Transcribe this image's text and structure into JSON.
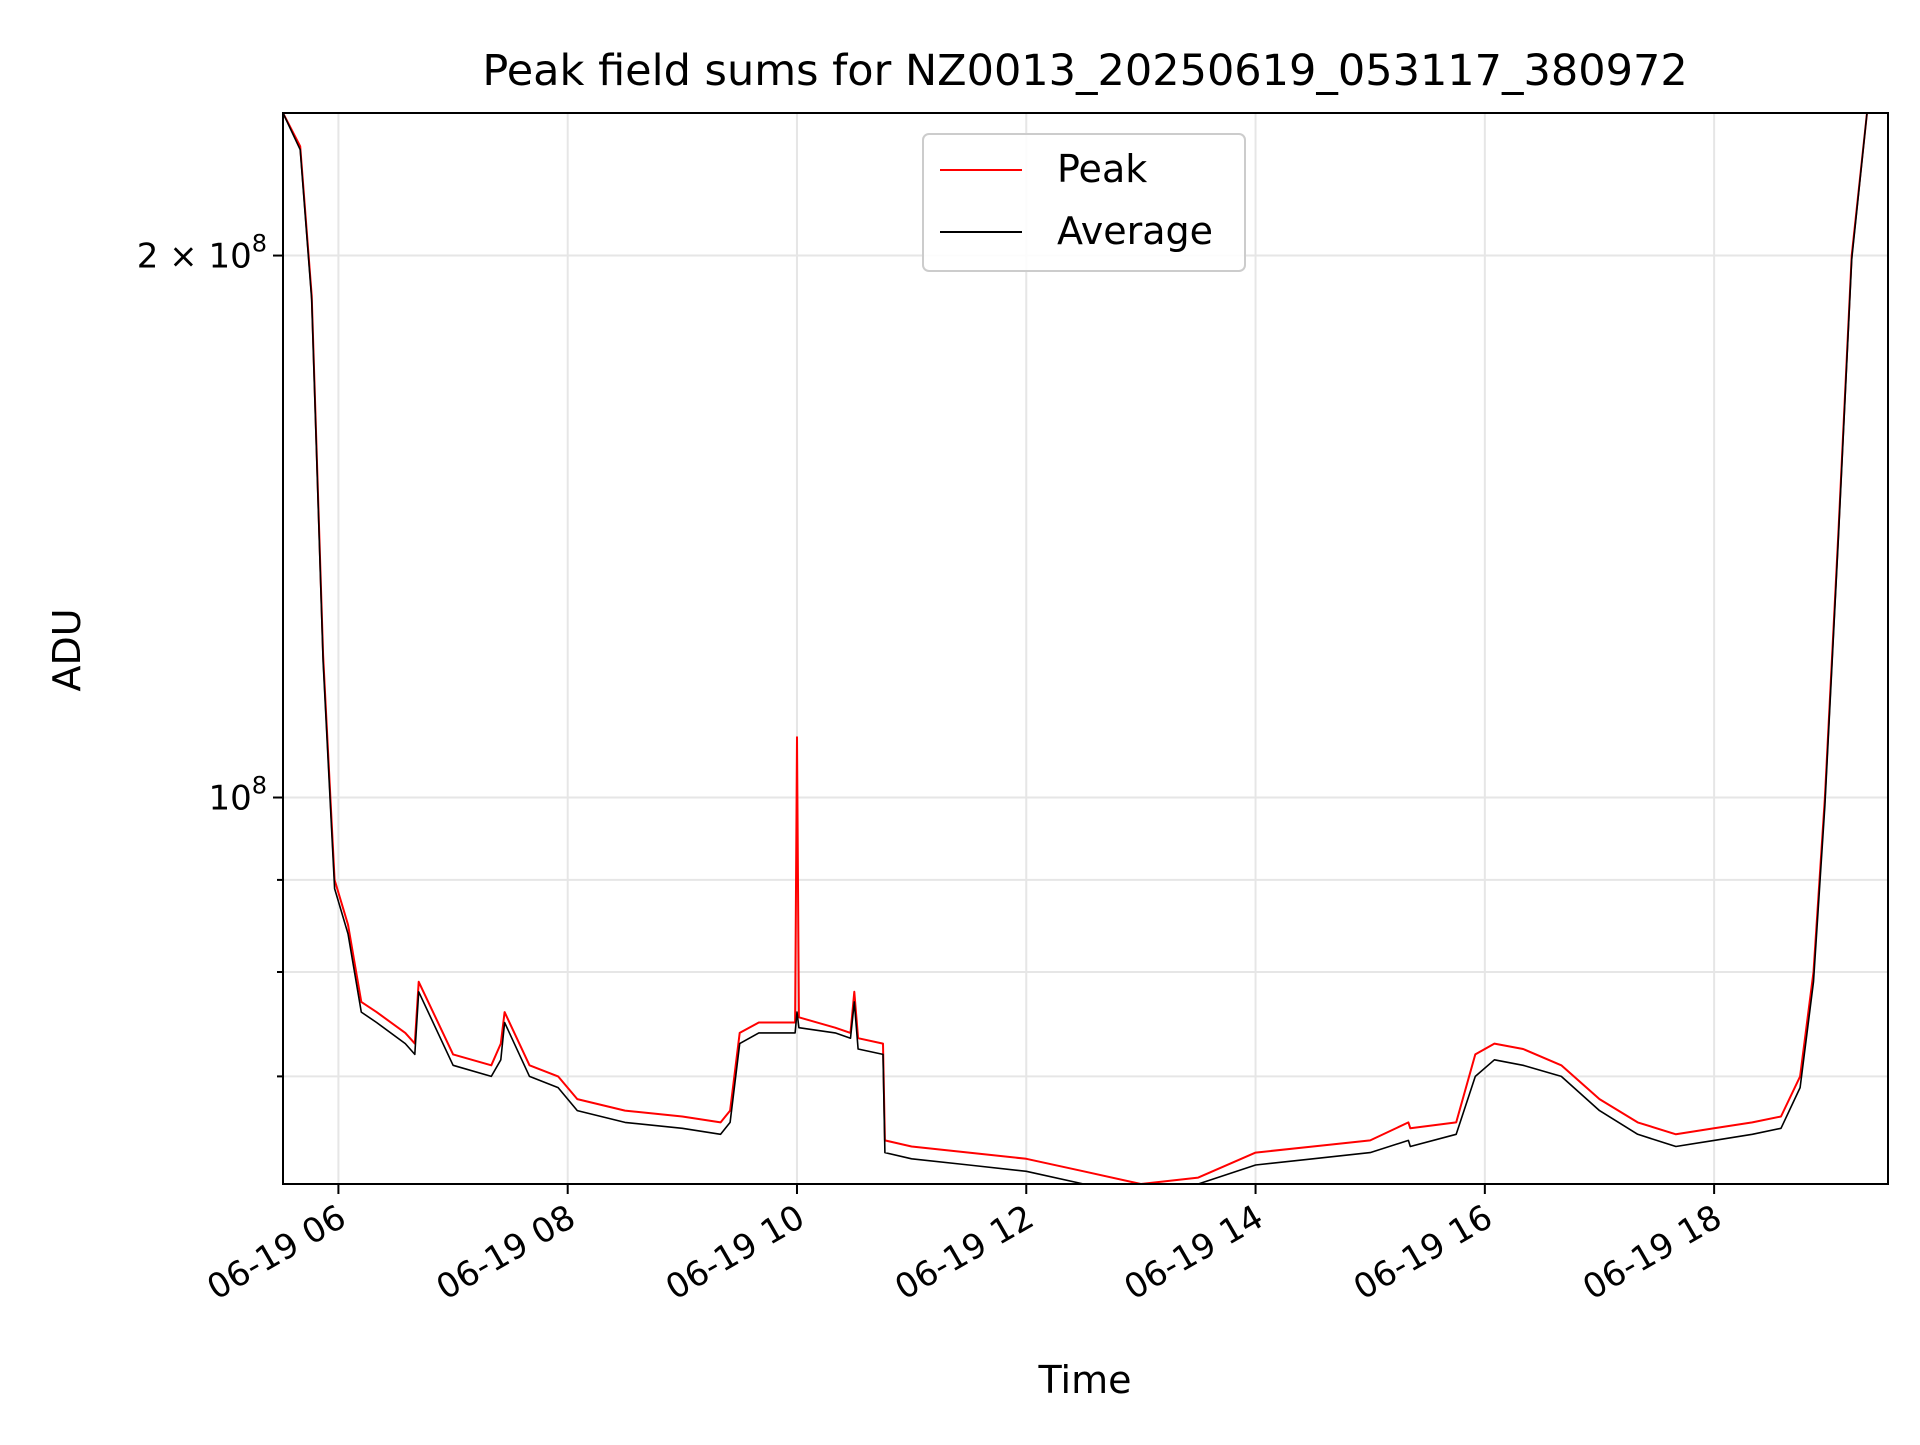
{
  "chart_data": {
    "type": "line",
    "title": "Peak field sums for NZ0013_20250619_053117_380972",
    "xlabel": "Time",
    "ylabel": "ADU",
    "yscale": "log",
    "grid": true,
    "legend_position": "top-center",
    "xlim": [
      "2025-06-19 05:31",
      "2025-06-19 19:31"
    ],
    "ylim": [
      61000000,
      240000000
    ],
    "x_ticks": [
      "06-19 06",
      "06-19 08",
      "06-19 10",
      "06-19 12",
      "06-19 14",
      "06-19 16",
      "06-19 18"
    ],
    "y_tick_labels": [
      {
        "value": 100000000,
        "base": "10",
        "exponent": "8"
      },
      {
        "value": 200000000,
        "base": "2 × 10",
        "exponent": "8"
      }
    ],
    "y_minor_ticks": [
      70000000,
      80000000,
      90000000
    ],
    "series": [
      {
        "name": "Peak",
        "color": "#ff0000",
        "x": [
          "2025-06-19 05:31",
          "2025-06-19 05:40",
          "2025-06-19 05:46",
          "2025-06-19 05:52",
          "2025-06-19 05:58",
          "2025-06-19 06:05",
          "2025-06-19 06:12",
          "2025-06-19 06:20",
          "2025-06-19 06:35",
          "2025-06-19 06:40",
          "2025-06-19 06:42",
          "2025-06-19 07:00",
          "2025-06-19 07:20",
          "2025-06-19 07:25",
          "2025-06-19 07:27",
          "2025-06-19 07:40",
          "2025-06-19 07:55",
          "2025-06-19 08:05",
          "2025-06-19 08:30",
          "2025-06-19 09:00",
          "2025-06-19 09:20",
          "2025-06-19 09:25",
          "2025-06-19 09:30",
          "2025-06-19 09:40",
          "2025-06-19 09:59",
          "2025-06-19 10:00",
          "2025-06-19 10:01",
          "2025-06-19 10:20",
          "2025-06-19 10:28",
          "2025-06-19 10:30",
          "2025-06-19 10:32",
          "2025-06-19 10:45",
          "2025-06-19 10:46",
          "2025-06-19 11:00",
          "2025-06-19 11:30",
          "2025-06-19 12:00",
          "2025-06-19 12:30",
          "2025-06-19 13:00",
          "2025-06-19 13:30",
          "2025-06-19 14:00",
          "2025-06-19 14:30",
          "2025-06-19 15:00",
          "2025-06-19 15:20",
          "2025-06-19 15:21",
          "2025-06-19 15:45",
          "2025-06-19 15:55",
          "2025-06-19 16:05",
          "2025-06-19 16:20",
          "2025-06-19 16:40",
          "2025-06-19 17:00",
          "2025-06-19 17:20",
          "2025-06-19 17:40",
          "2025-06-19 18:00",
          "2025-06-19 18:20",
          "2025-06-19 18:35",
          "2025-06-19 18:45",
          "2025-06-19 18:52",
          "2025-06-19 18:58",
          "2025-06-19 19:05",
          "2025-06-19 19:12",
          "2025-06-19 19:20"
        ],
        "values": [
          240000000,
          230000000,
          190000000,
          120000000,
          90000000,
          85000000,
          77000000,
          76000000,
          74000000,
          73000000,
          79000000,
          72000000,
          71000000,
          73000000,
          76000000,
          71000000,
          70000000,
          68000000,
          67000000,
          66500000,
          66000000,
          67000000,
          74000000,
          75000000,
          75000000,
          108000000,
          75500000,
          74500000,
          74000000,
          78000000,
          73500000,
          73000000,
          64500000,
          64000000,
          63500000,
          63000000,
          62000000,
          61000000,
          61500000,
          63500000,
          64000000,
          64500000,
          66000000,
          65500000,
          66000000,
          72000000,
          73000000,
          72500000,
          71000000,
          68000000,
          66000000,
          65000000,
          65500000,
          66000000,
          66500000,
          70000000,
          80000000,
          100000000,
          140000000,
          200000000,
          240000000
        ]
      },
      {
        "name": "Average",
        "color": "#000000",
        "x": [
          "2025-06-19 05:31",
          "2025-06-19 05:40",
          "2025-06-19 05:46",
          "2025-06-19 05:52",
          "2025-06-19 05:58",
          "2025-06-19 06:05",
          "2025-06-19 06:12",
          "2025-06-19 06:20",
          "2025-06-19 06:35",
          "2025-06-19 06:40",
          "2025-06-19 06:42",
          "2025-06-19 07:00",
          "2025-06-19 07:20",
          "2025-06-19 07:25",
          "2025-06-19 07:27",
          "2025-06-19 07:40",
          "2025-06-19 07:55",
          "2025-06-19 08:05",
          "2025-06-19 08:30",
          "2025-06-19 09:00",
          "2025-06-19 09:20",
          "2025-06-19 09:25",
          "2025-06-19 09:30",
          "2025-06-19 09:40",
          "2025-06-19 09:59",
          "2025-06-19 10:00",
          "2025-06-19 10:01",
          "2025-06-19 10:20",
          "2025-06-19 10:28",
          "2025-06-19 10:30",
          "2025-06-19 10:32",
          "2025-06-19 10:45",
          "2025-06-19 10:46",
          "2025-06-19 11:00",
          "2025-06-19 11:30",
          "2025-06-19 12:00",
          "2025-06-19 12:30",
          "2025-06-19 13:00",
          "2025-06-19 13:30",
          "2025-06-19 14:00",
          "2025-06-19 14:30",
          "2025-06-19 15:00",
          "2025-06-19 15:20",
          "2025-06-19 15:21",
          "2025-06-19 15:45",
          "2025-06-19 15:55",
          "2025-06-19 16:05",
          "2025-06-19 16:20",
          "2025-06-19 16:40",
          "2025-06-19 17:00",
          "2025-06-19 17:20",
          "2025-06-19 17:40",
          "2025-06-19 18:00",
          "2025-06-19 18:20",
          "2025-06-19 18:35",
          "2025-06-19 18:45",
          "2025-06-19 18:52",
          "2025-06-19 18:58",
          "2025-06-19 19:05",
          "2025-06-19 19:12",
          "2025-06-19 19:20"
        ],
        "values": [
          240000000,
          229000000,
          189000000,
          119000000,
          89000000,
          84000000,
          76000000,
          75000000,
          73000000,
          72000000,
          78000000,
          71000000,
          70000000,
          71500000,
          75000000,
          70000000,
          69000000,
          67000000,
          66000000,
          65500000,
          65000000,
          66000000,
          73000000,
          74000000,
          74000000,
          76000000,
          74500000,
          74000000,
          73500000,
          77000000,
          72500000,
          72000000,
          63500000,
          63000000,
          62500000,
          62000000,
          61000000,
          60500000,
          60800000,
          62500000,
          63000000,
          63500000,
          64500000,
          64000000,
          65000000,
          70000000,
          71500000,
          71000000,
          70000000,
          67000000,
          65000000,
          64000000,
          64500000,
          65000000,
          65500000,
          69000000,
          79000000,
          99000000,
          139000000,
          199000000,
          240000000
        ]
      }
    ]
  }
}
